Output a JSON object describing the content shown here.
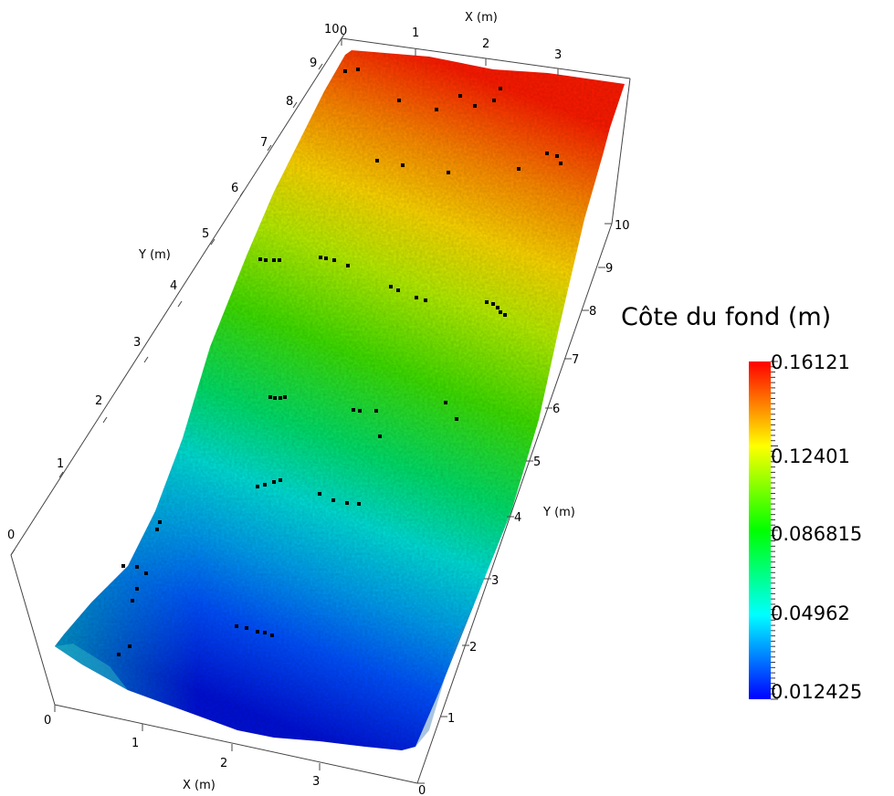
{
  "legend": {
    "title": "Côte du fond (m)",
    "max": "0.16121",
    "v2": "0.12401",
    "v3": "0.086815",
    "v4": "0.04962",
    "min": "0.012425",
    "colors": [
      "#ff0000",
      "#ffff00",
      "#00ff00",
      "#00ffff",
      "#0000ff"
    ]
  },
  "axes": {
    "x_title": "X (m)",
    "y_title": "Y (m)",
    "top_x_ticks": [
      "0",
      "1",
      "2",
      "3"
    ],
    "bottom_x_ticks": [
      "0",
      "1",
      "2",
      "3"
    ],
    "left_y_ticks": [
      "0",
      "1",
      "2",
      "3",
      "4",
      "5",
      "6",
      "7",
      "8",
      "9",
      "10"
    ],
    "right_y_ticks": [
      "0",
      "1",
      "2",
      "3",
      "4",
      "5",
      "6",
      "7",
      "8",
      "9",
      "10"
    ]
  }
}
